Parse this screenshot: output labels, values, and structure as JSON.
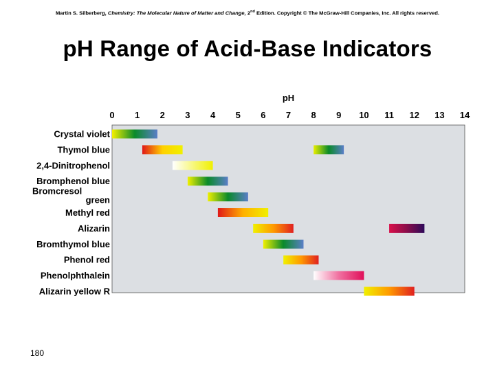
{
  "header": {
    "credit_author": "Martin S. Silberberg, ",
    "credit_book": "Chemistry: The Molecular Nature of Matter and Change,",
    "credit_edition_num": " 2",
    "credit_edition_sup": "nd",
    "credit_rest": " Edition.  Copyright © The McGraw-Hill Companies, Inc. All rights reserved."
  },
  "title": "pH Range of Acid-Base Indicators",
  "page_number": "180",
  "chart_data": {
    "type": "bar",
    "orientation": "horizontal-range",
    "xlabel": "pH",
    "xlim": [
      0,
      14
    ],
    "xticks": [
      "0",
      "1",
      "2",
      "3",
      "4",
      "5",
      "6",
      "7",
      "8",
      "9",
      "10",
      "11",
      "12",
      "13",
      "14"
    ],
    "legend": "none",
    "indicators": [
      {
        "name": "Crystal violet",
        "lines": [
          "Crystal violet"
        ],
        "ranges": [
          {
            "start": 0.0,
            "end": 1.8,
            "colors": [
              "#f4f000",
              "#0a8a2a",
              "#5a7ec8"
            ]
          }
        ]
      },
      {
        "name": "Thymol blue",
        "lines": [
          "Thymol blue"
        ],
        "ranges": [
          {
            "start": 1.2,
            "end": 2.8,
            "colors": [
              "#e01818",
              "#ffd000",
              "#f0f000"
            ]
          },
          {
            "start": 8.0,
            "end": 9.2,
            "colors": [
              "#e8ee00",
              "#0a8a2a",
              "#5a7ec8"
            ]
          }
        ]
      },
      {
        "name": "2,4-Dinitrophenol",
        "lines": [
          "2,4-Dinitrophenol"
        ],
        "ranges": [
          {
            "start": 2.4,
            "end": 4.0,
            "colors": [
              "#ffffff",
              "#f0f000"
            ]
          }
        ]
      },
      {
        "name": "Bromphenol blue",
        "lines": [
          "Bromphenol blue"
        ],
        "ranges": [
          {
            "start": 3.0,
            "end": 4.6,
            "colors": [
              "#f0f000",
              "#0a8a2a",
              "#5a7ec8"
            ]
          }
        ]
      },
      {
        "name": "Bromcresol green",
        "lines": [
          "Bromcresol",
          "green"
        ],
        "ranges": [
          {
            "start": 3.8,
            "end": 5.4,
            "colors": [
              "#f0f000",
              "#0a8a2a",
              "#5a7ec8"
            ]
          }
        ]
      },
      {
        "name": "Methyl red",
        "lines": [
          "Methyl red"
        ],
        "ranges": [
          {
            "start": 4.2,
            "end": 6.2,
            "colors": [
              "#e01818",
              "#ffb000",
              "#f0f000"
            ]
          }
        ]
      },
      {
        "name": "Alizarin",
        "lines": [
          "Alizarin"
        ],
        "ranges": [
          {
            "start": 5.6,
            "end": 7.2,
            "colors": [
              "#f0f000",
              "#ff9a00",
              "#e02020"
            ]
          },
          {
            "start": 11.0,
            "end": 12.4,
            "colors": [
              "#d8104a",
              "#8a0d4a",
              "#2e0a5a"
            ]
          }
        ]
      },
      {
        "name": "Bromthymol blue",
        "lines": [
          "Bromthymol blue"
        ],
        "ranges": [
          {
            "start": 6.0,
            "end": 7.6,
            "colors": [
              "#f0f000",
              "#0a8a2a",
              "#5a7ec8"
            ]
          }
        ]
      },
      {
        "name": "Phenol red",
        "lines": [
          "Phenol red"
        ],
        "ranges": [
          {
            "start": 6.8,
            "end": 8.2,
            "colors": [
              "#f0f000",
              "#ff9a00",
              "#e02020"
            ]
          }
        ]
      },
      {
        "name": "Phenolphthalein",
        "lines": [
          "Phenolphthalein"
        ],
        "ranges": [
          {
            "start": 8.0,
            "end": 10.0,
            "colors": [
              "#ffffff",
              "#f070a0",
              "#e0105a"
            ]
          }
        ]
      },
      {
        "name": "Alizarin yellow R",
        "lines": [
          "Alizarin yellow R"
        ],
        "ranges": [
          {
            "start": 10.0,
            "end": 12.0,
            "colors": [
              "#f0f000",
              "#ff9a00",
              "#e02020"
            ]
          }
        ]
      }
    ]
  },
  "colors": {
    "plot_background": "#dcdfe3",
    "frame": "#555555",
    "text": "#000000"
  }
}
